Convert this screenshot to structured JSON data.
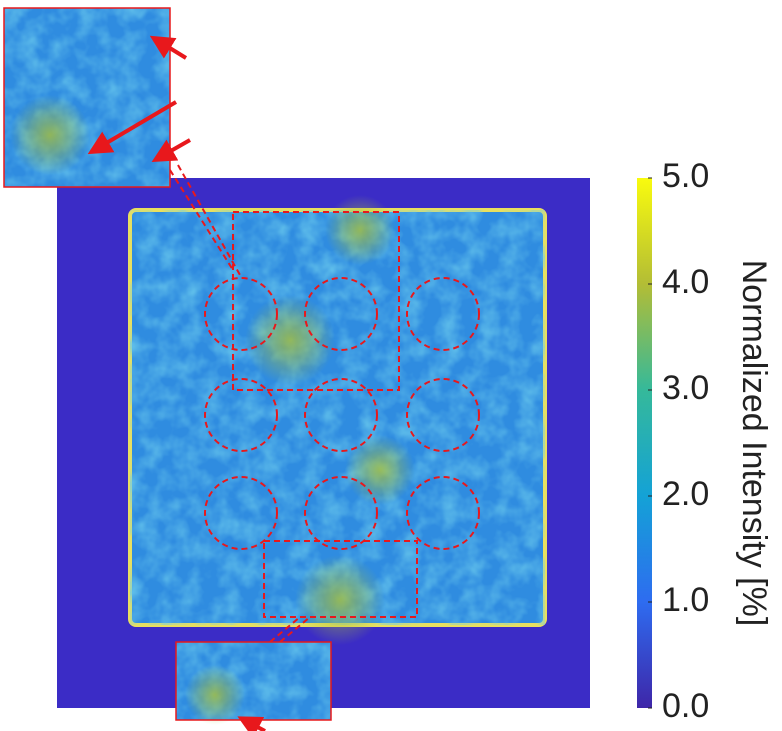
{
  "colorbar": {
    "label": "Normalized Intensity [%]",
    "lim": [
      0,
      5
    ],
    "ticks": [
      {
        "value": 0,
        "label": "0.0"
      },
      {
        "value": 1,
        "label": "1.0"
      },
      {
        "value": 2,
        "label": "2.0"
      },
      {
        "value": 3,
        "label": "3.0"
      },
      {
        "value": 4,
        "label": "4.0"
      },
      {
        "value": 5,
        "label": "5.0"
      }
    ]
  }
}
